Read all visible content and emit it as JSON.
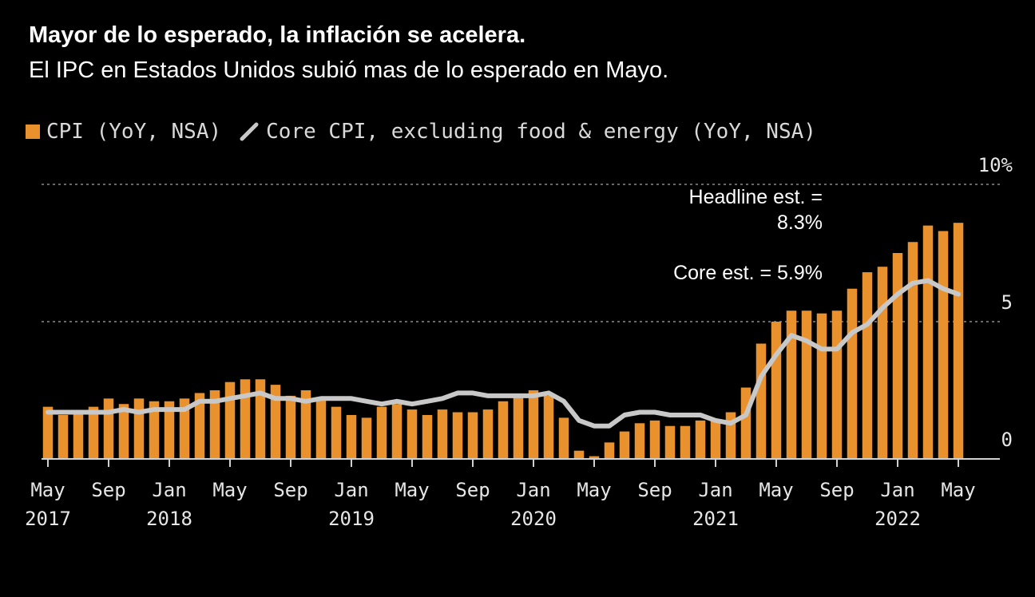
{
  "title": "Mayor de lo esperado, la inflación se acelera.",
  "subtitle": "El IPC en Estados Unidos subió mas de lo esperado en Mayo.",
  "colors": {
    "background": "#000000",
    "cpi_bar": "#e8912d",
    "core_line": "#c8c8c8",
    "grid": "#8a8a8a",
    "text": "#e6e6e6"
  },
  "chart_data": {
    "type": "bar",
    "months": [
      "May 2017",
      "Jun 2017",
      "Jul 2017",
      "Aug 2017",
      "Sep 2017",
      "Oct 2017",
      "Nov 2017",
      "Dec 2017",
      "Jan 2018",
      "Feb 2018",
      "Mar 2018",
      "Apr 2018",
      "May 2018",
      "Jun 2018",
      "Jul 2018",
      "Aug 2018",
      "Sep 2018",
      "Oct 2018",
      "Nov 2018",
      "Dec 2018",
      "Jan 2019",
      "Feb 2019",
      "Mar 2019",
      "Apr 2019",
      "May 2019",
      "Jun 2019",
      "Jul 2019",
      "Aug 2019",
      "Sep 2019",
      "Oct 2019",
      "Nov 2019",
      "Dec 2019",
      "Jan 2020",
      "Feb 2020",
      "Mar 2020",
      "Apr 2020",
      "May 2020",
      "Jun 2020",
      "Jul 2020",
      "Aug 2020",
      "Sep 2020",
      "Oct 2020",
      "Nov 2020",
      "Dec 2020",
      "Jan 2021",
      "Feb 2021",
      "Mar 2021",
      "Apr 2021",
      "May 2021",
      "Jun 2021",
      "Jul 2021",
      "Aug 2021",
      "Sep 2021",
      "Oct 2021",
      "Nov 2021",
      "Dec 2021",
      "Jan 2022",
      "Feb 2022",
      "Mar 2022",
      "Apr 2022",
      "May 2022"
    ],
    "series": [
      {
        "name": "CPI (YoY, NSA)",
        "style": "bar",
        "values": [
          1.9,
          1.6,
          1.7,
          1.9,
          2.2,
          2.0,
          2.2,
          2.1,
          2.1,
          2.2,
          2.4,
          2.5,
          2.8,
          2.9,
          2.9,
          2.7,
          2.3,
          2.5,
          2.2,
          1.9,
          1.6,
          1.5,
          1.9,
          2.0,
          1.8,
          1.6,
          1.8,
          1.7,
          1.7,
          1.8,
          2.1,
          2.3,
          2.5,
          2.3,
          1.5,
          0.3,
          0.1,
          0.6,
          1.0,
          1.3,
          1.4,
          1.2,
          1.2,
          1.4,
          1.4,
          1.7,
          2.6,
          4.2,
          5.0,
          5.4,
          5.4,
          5.3,
          5.4,
          6.2,
          6.8,
          7.0,
          7.5,
          7.9,
          8.5,
          8.3,
          8.6
        ]
      },
      {
        "name": "Core CPI, excluding food & energy (YoY, NSA)",
        "style": "line",
        "values": [
          1.7,
          1.7,
          1.7,
          1.7,
          1.7,
          1.8,
          1.7,
          1.8,
          1.8,
          1.8,
          2.1,
          2.1,
          2.2,
          2.3,
          2.4,
          2.2,
          2.2,
          2.1,
          2.2,
          2.2,
          2.2,
          2.1,
          2.0,
          2.1,
          2.0,
          2.1,
          2.2,
          2.4,
          2.4,
          2.3,
          2.3,
          2.3,
          2.3,
          2.4,
          2.1,
          1.4,
          1.2,
          1.2,
          1.6,
          1.7,
          1.7,
          1.6,
          1.6,
          1.6,
          1.4,
          1.3,
          1.6,
          3.0,
          3.8,
          4.5,
          4.3,
          4.0,
          4.0,
          4.6,
          4.9,
          5.5,
          6.0,
          6.4,
          6.5,
          6.2,
          6.0
        ]
      }
    ],
    "x_tick_labels": [
      {
        "month": "May 2017",
        "line1": "May",
        "line2": "2017"
      },
      {
        "month": "Sep 2017",
        "line1": "Sep",
        "line2": ""
      },
      {
        "month": "Jan 2018",
        "line1": "Jan",
        "line2": "2018"
      },
      {
        "month": "May 2018",
        "line1": "May",
        "line2": ""
      },
      {
        "month": "Sep 2018",
        "line1": "Sep",
        "line2": ""
      },
      {
        "month": "Jan 2019",
        "line1": "Jan",
        "line2": "2019"
      },
      {
        "month": "May 2019",
        "line1": "May",
        "line2": ""
      },
      {
        "month": "Sep 2019",
        "line1": "Sep",
        "line2": ""
      },
      {
        "month": "Jan 2020",
        "line1": "Jan",
        "line2": "2020"
      },
      {
        "month": "May 2020",
        "line1": "May",
        "line2": ""
      },
      {
        "month": "Sep 2020",
        "line1": "Sep",
        "line2": ""
      },
      {
        "month": "Jan 2021",
        "line1": "Jan",
        "line2": "2021"
      },
      {
        "month": "May 2021",
        "line1": "May",
        "line2": ""
      },
      {
        "month": "Sep 2021",
        "line1": "Sep",
        "line2": ""
      },
      {
        "month": "Jan 2022",
        "line1": "Jan",
        "line2": "2022"
      },
      {
        "month": "May 2022",
        "line1": "May",
        "line2": ""
      }
    ],
    "y_ticks": [
      {
        "value": 0,
        "label": "0"
      },
      {
        "value": 5,
        "label": "5"
      },
      {
        "value": 10,
        "label": "10%"
      }
    ],
    "ylim": [
      0,
      10
    ],
    "grid": "dashed horizontal at 5 and 10",
    "legend_placement": "top-left",
    "annotations": [
      {
        "lines": [
          "Headline est. =",
          "8.3%"
        ]
      },
      {
        "lines": [
          "Core est. = 5.9%"
        ]
      }
    ]
  }
}
